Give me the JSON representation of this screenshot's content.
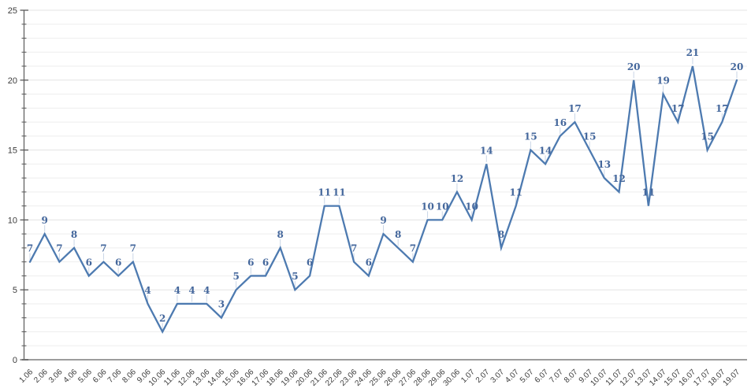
{
  "chart_data": {
    "type": "line",
    "title": "",
    "xlabel": "",
    "ylabel": "",
    "categories": [
      "1.06",
      "2.06",
      "3.06",
      "4.06",
      "5.06",
      "6.06",
      "7.06",
      "8.06",
      "9.06",
      "10.06",
      "11.06",
      "12.06",
      "13.06",
      "14.06",
      "15.06",
      "16.06",
      "17.06",
      "18.06",
      "19.06",
      "20.06",
      "21.06",
      "22.06",
      "23.06",
      "24.06",
      "25.06",
      "26.06",
      "27.06",
      "28.06",
      "29.06",
      "30.06",
      "1.07",
      "2.07",
      "3.07",
      "4.07",
      "5.07",
      "6.07",
      "7.07",
      "8.07",
      "9.07",
      "10.07",
      "11.07",
      "12.07",
      "13.07",
      "14.07",
      "15.07",
      "16.07",
      "17.07",
      "18.07",
      "19.07"
    ],
    "values": [
      7,
      9,
      7,
      8,
      6,
      7,
      6,
      7,
      4,
      2,
      4,
      4,
      4,
      3,
      5,
      6,
      6,
      8,
      5,
      6,
      11,
      11,
      7,
      6,
      9,
      8,
      7,
      10,
      10,
      12,
      10,
      14,
      8,
      11,
      15,
      14,
      16,
      17,
      15,
      13,
      12,
      20,
      11,
      19,
      17,
      21,
      15,
      17,
      20
    ],
    "data_labels_visible": true,
    "ylim": [
      0,
      25
    ],
    "y_major_ticks": [
      0,
      5,
      10,
      15,
      20,
      25
    ],
    "y_minor_step": 1,
    "grid": "horizontal, every 1 unit",
    "legend": "none",
    "colors": {
      "line": "#4d7ab0",
      "data_label": "#44679c",
      "leader_line": "#c9d5e6",
      "gridline_minor": "#eeeeee",
      "gridline_major": "#e3e3e3",
      "x_axis_line": "#9c9c9c",
      "y_axis_line": "#6b6b6b",
      "tick_mark": "#595959",
      "tick_label": "#3c3c3c",
      "background": "#ffffff"
    }
  }
}
